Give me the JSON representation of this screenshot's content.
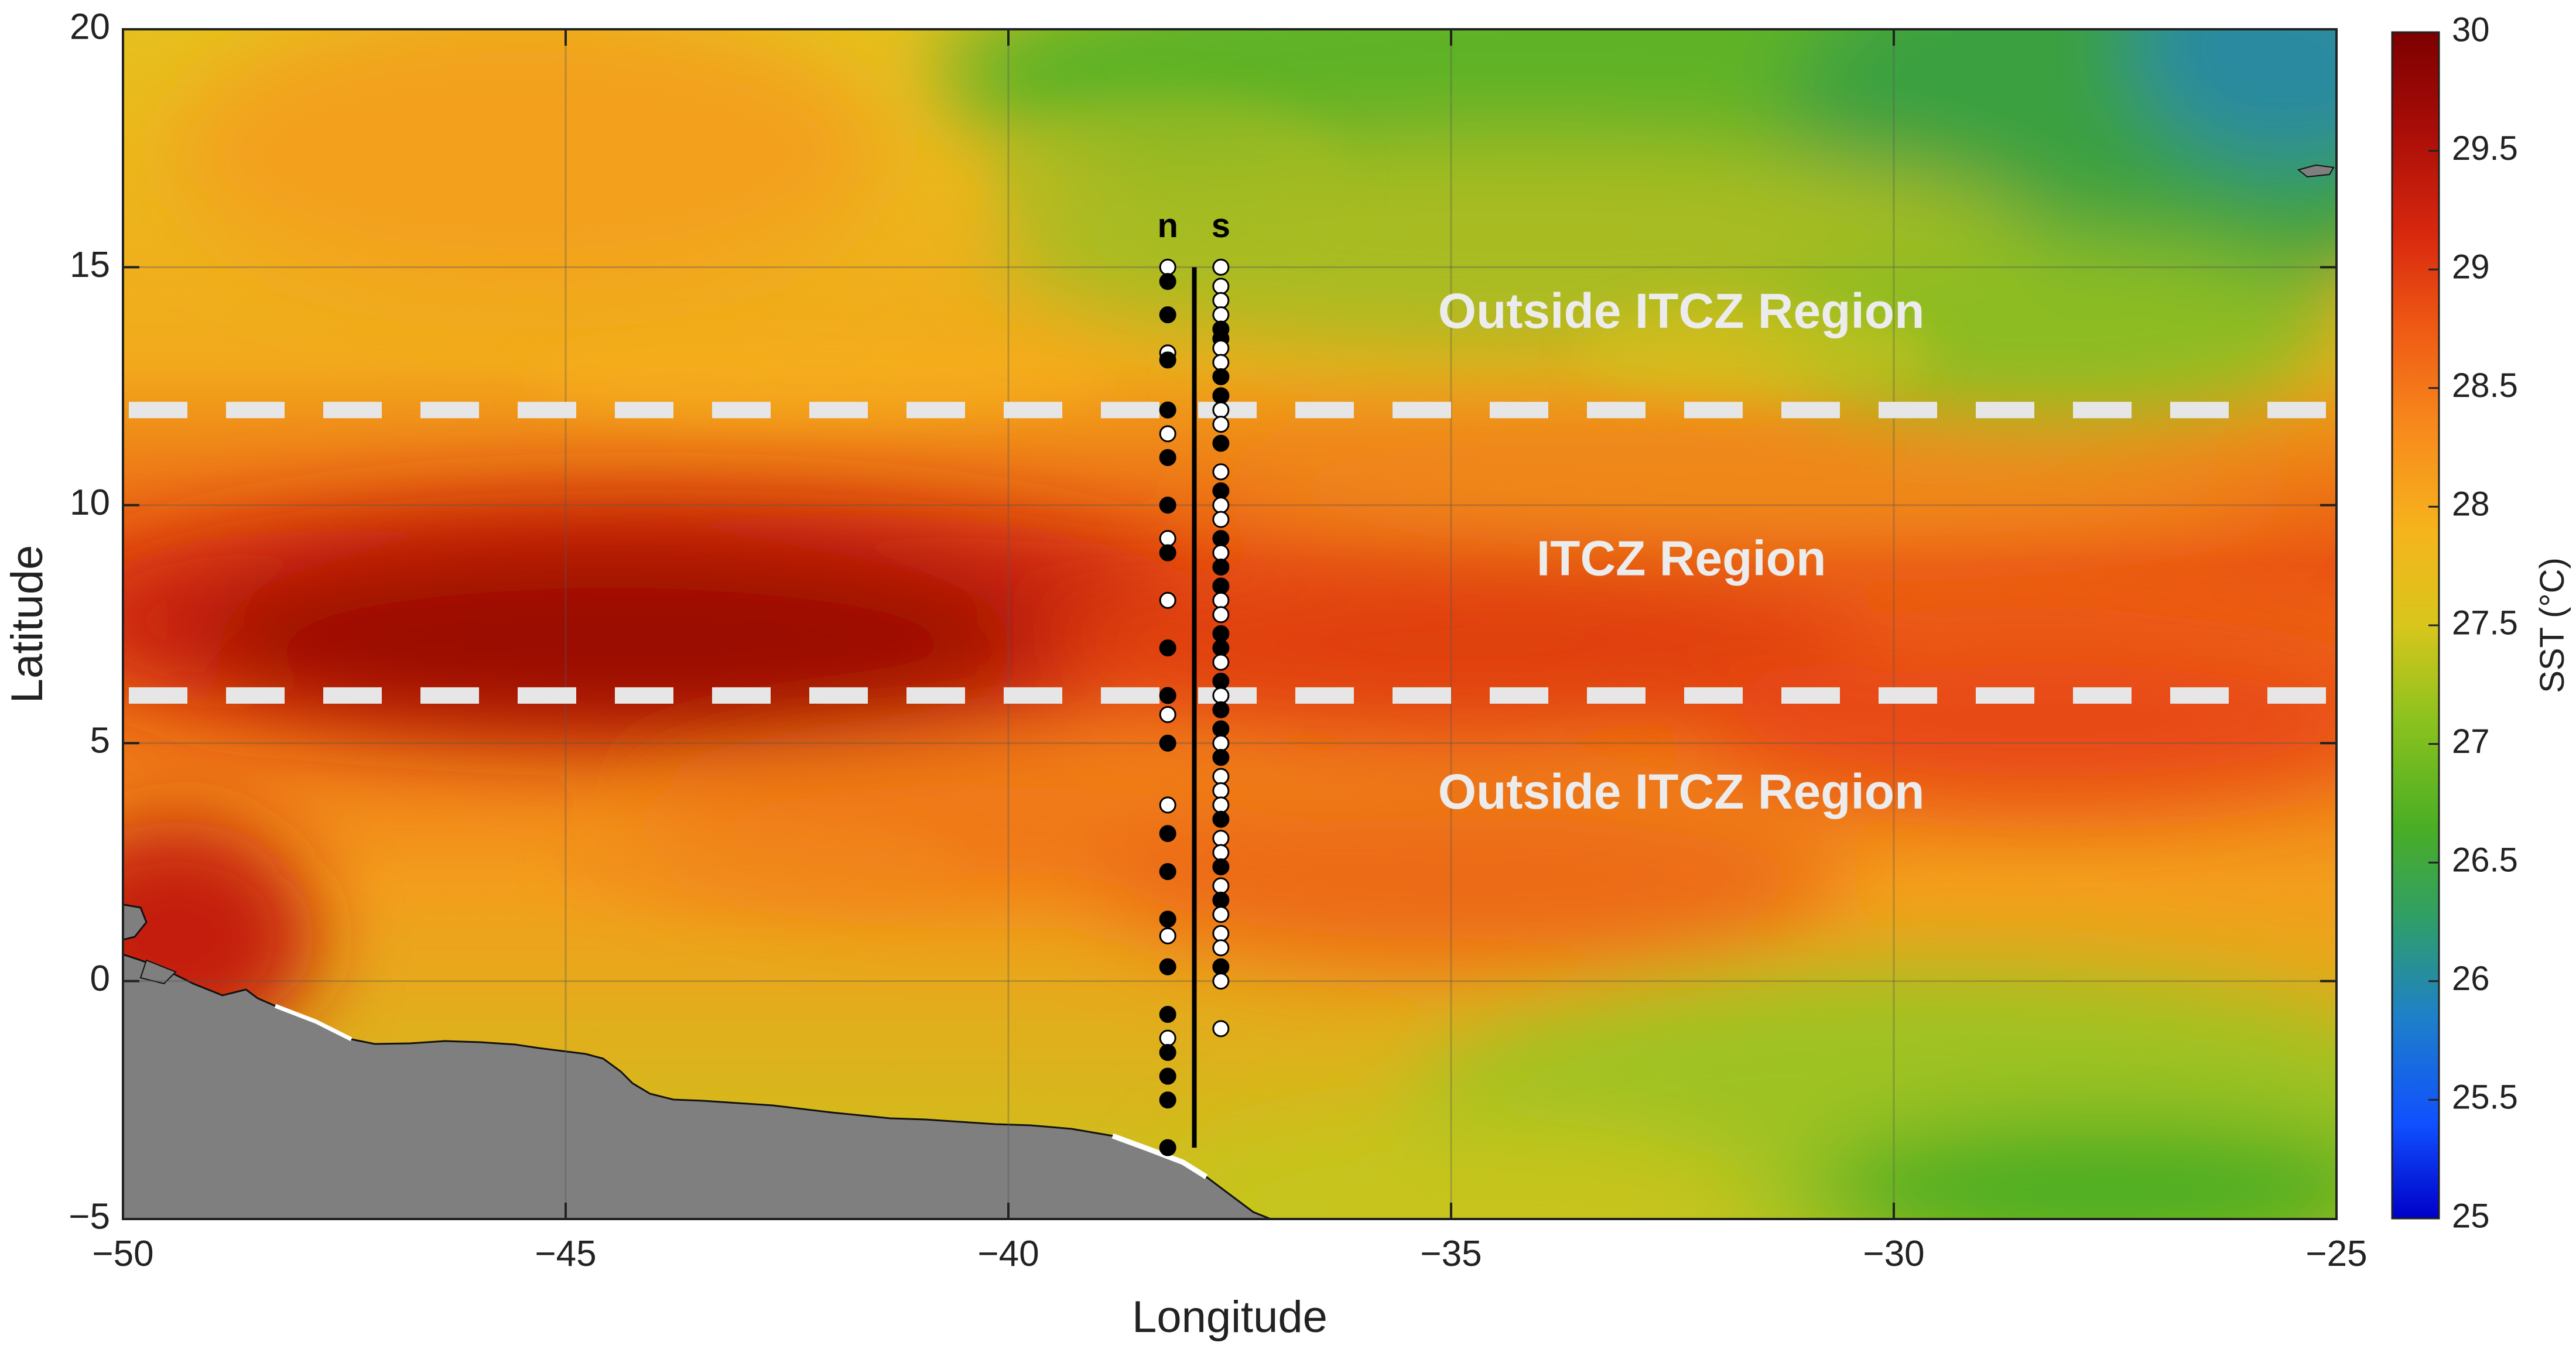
{
  "chart_data": {
    "type": "heatmap",
    "xlabel": "Longitude",
    "ylabel": "Latitude",
    "xlim": [
      -50,
      -25
    ],
    "ylim": [
      -5,
      20
    ],
    "xticks": [
      -50,
      -45,
      -40,
      -35,
      -30,
      -25
    ],
    "yticks": [
      -5,
      0,
      5,
      10,
      15,
      20
    ],
    "xtick_labels": [
      "−50",
      "−45",
      "−40",
      "−35",
      "−30",
      "−25"
    ],
    "ytick_labels": [
      "−5",
      "0",
      "5",
      "10",
      "15",
      "20"
    ],
    "grid": true,
    "colorbar": {
      "label": "SST (°C)",
      "range": [
        25,
        30
      ],
      "ticks": [
        25,
        25.5,
        26,
        26.5,
        27,
        27.5,
        28,
        28.5,
        29,
        29.5,
        30
      ],
      "tick_labels": [
        "25",
        "25.5",
        "26",
        "26.5",
        "27",
        "27.5",
        "28",
        "28.5",
        "29",
        "29.5",
        "30"
      ],
      "colormap": [
        "#0000c8",
        "#1050ff",
        "#1e80c8",
        "#2f9e6a",
        "#4aae24",
        "#8cc21e",
        "#d8c61c",
        "#f6b41c",
        "#f7881c",
        "#ef5a14",
        "#d8280e",
        "#a80c08",
        "#7c0000"
      ]
    },
    "boundaries": [
      {
        "lat": 12,
        "style": "dashed",
        "color": "#e6e6e6"
      },
      {
        "lat": 6,
        "style": "dashed",
        "color": "#e6e6e6"
      }
    ],
    "regions": [
      {
        "label": "Outside ITCZ Region",
        "lat": 14,
        "lon": -32.4
      },
      {
        "label": "ITCZ Region",
        "lat": 8.8,
        "lon": -32.4
      },
      {
        "label": "Outside ITCZ Region",
        "lat": 3.9,
        "lon": -32.4
      }
    ],
    "section_line": {
      "lon": -37.9,
      "lat_range": [
        -3.5,
        15
      ]
    },
    "columns": [
      {
        "label": "n",
        "lon": -38.2,
        "points": [
          {
            "lat": 15.0,
            "fill": "white"
          },
          {
            "lat": 14.7,
            "fill": "black"
          },
          {
            "lat": 14.0,
            "fill": "black"
          },
          {
            "lat": 13.2,
            "fill": "white"
          },
          {
            "lat": 13.05,
            "fill": "black"
          },
          {
            "lat": 12.0,
            "fill": "black"
          },
          {
            "lat": 11.5,
            "fill": "white"
          },
          {
            "lat": 11.0,
            "fill": "black"
          },
          {
            "lat": 10.0,
            "fill": "black"
          },
          {
            "lat": 9.3,
            "fill": "white"
          },
          {
            "lat": 9.0,
            "fill": "black"
          },
          {
            "lat": 8.0,
            "fill": "white"
          },
          {
            "lat": 7.0,
            "fill": "black"
          },
          {
            "lat": 6.0,
            "fill": "black"
          },
          {
            "lat": 5.6,
            "fill": "white"
          },
          {
            "lat": 5.0,
            "fill": "black"
          },
          {
            "lat": 3.7,
            "fill": "white"
          },
          {
            "lat": 3.1,
            "fill": "black"
          },
          {
            "lat": 2.3,
            "fill": "black"
          },
          {
            "lat": 1.3,
            "fill": "black"
          },
          {
            "lat": 0.95,
            "fill": "white"
          },
          {
            "lat": 0.3,
            "fill": "black"
          },
          {
            "lat": -0.7,
            "fill": "black"
          },
          {
            "lat": -1.2,
            "fill": "white"
          },
          {
            "lat": -1.5,
            "fill": "black"
          },
          {
            "lat": -2.0,
            "fill": "black"
          },
          {
            "lat": -2.5,
            "fill": "black"
          },
          {
            "lat": -3.5,
            "fill": "black"
          }
        ]
      },
      {
        "label": "s",
        "lon": -37.6,
        "points": [
          {
            "lat": 15.0,
            "fill": "white"
          },
          {
            "lat": 14.6,
            "fill": "white"
          },
          {
            "lat": 14.3,
            "fill": "white"
          },
          {
            "lat": 14.0,
            "fill": "white"
          },
          {
            "lat": 13.7,
            "fill": "black"
          },
          {
            "lat": 13.5,
            "fill": "black"
          },
          {
            "lat": 13.3,
            "fill": "white"
          },
          {
            "lat": 13.0,
            "fill": "white"
          },
          {
            "lat": 12.7,
            "fill": "black"
          },
          {
            "lat": 12.3,
            "fill": "black"
          },
          {
            "lat": 12.0,
            "fill": "white"
          },
          {
            "lat": 11.7,
            "fill": "white"
          },
          {
            "lat": 11.3,
            "fill": "black"
          },
          {
            "lat": 10.7,
            "fill": "white"
          },
          {
            "lat": 10.3,
            "fill": "black"
          },
          {
            "lat": 10.0,
            "fill": "white"
          },
          {
            "lat": 9.7,
            "fill": "white"
          },
          {
            "lat": 9.3,
            "fill": "black"
          },
          {
            "lat": 9.0,
            "fill": "white"
          },
          {
            "lat": 8.7,
            "fill": "black"
          },
          {
            "lat": 8.3,
            "fill": "black"
          },
          {
            "lat": 8.0,
            "fill": "white"
          },
          {
            "lat": 7.7,
            "fill": "white"
          },
          {
            "lat": 7.3,
            "fill": "black"
          },
          {
            "lat": 7.0,
            "fill": "black"
          },
          {
            "lat": 6.7,
            "fill": "white"
          },
          {
            "lat": 6.3,
            "fill": "black"
          },
          {
            "lat": 6.0,
            "fill": "white"
          },
          {
            "lat": 5.7,
            "fill": "black"
          },
          {
            "lat": 5.3,
            "fill": "black"
          },
          {
            "lat": 5.0,
            "fill": "white"
          },
          {
            "lat": 4.7,
            "fill": "black"
          },
          {
            "lat": 4.3,
            "fill": "white"
          },
          {
            "lat": 4.0,
            "fill": "white"
          },
          {
            "lat": 3.7,
            "fill": "white"
          },
          {
            "lat": 3.4,
            "fill": "black"
          },
          {
            "lat": 3.0,
            "fill": "white"
          },
          {
            "lat": 2.7,
            "fill": "white"
          },
          {
            "lat": 2.4,
            "fill": "black"
          },
          {
            "lat": 2.0,
            "fill": "white"
          },
          {
            "lat": 1.7,
            "fill": "black"
          },
          {
            "lat": 1.4,
            "fill": "white"
          },
          {
            "lat": 1.0,
            "fill": "white"
          },
          {
            "lat": 0.7,
            "fill": "white"
          },
          {
            "lat": 0.3,
            "fill": "black"
          },
          {
            "lat": 0.0,
            "fill": "white"
          },
          {
            "lat": -1.0,
            "fill": "white"
          }
        ]
      }
    ]
  }
}
